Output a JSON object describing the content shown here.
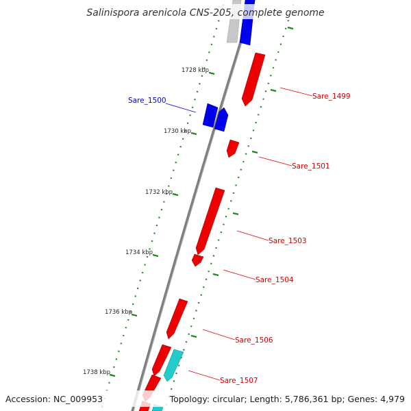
{
  "map": {
    "title": "Salinispora arenicola CNS-205, complete genome",
    "accession_text": "Accession: NC_009953",
    "topology_text": "Topology: circular; Length: 5,786,361 bp; Genes: 4,979"
  },
  "colors": {
    "backbone": "#7f7f7f",
    "tick": "#1e8a1e",
    "forward_gene": "#0000ee",
    "reverse_gene": "#ee0000",
    "other_gene": "#22cccc",
    "faded_gene": "#c8c8c8",
    "forward_label": "#0000cc",
    "reverse_label": "#cc0000"
  },
  "ticks": [
    {
      "label": "1728 kbp"
    },
    {
      "label": "1730 kbp"
    },
    {
      "label": "1732 kbp"
    },
    {
      "label": "1734 kbp"
    },
    {
      "label": "1736 kbp"
    },
    {
      "label": "1738 kbp"
    }
  ],
  "gene_labels": [
    {
      "name": "Sare_1500",
      "strand": "forward"
    },
    {
      "name": "Sare_1499",
      "strand": "reverse"
    },
    {
      "name": "Sare_1501",
      "strand": "reverse"
    },
    {
      "name": "Sare_1503",
      "strand": "reverse"
    },
    {
      "name": "Sare_1504",
      "strand": "reverse"
    },
    {
      "name": "Sare_1506",
      "strand": "reverse"
    },
    {
      "name": "Sare_1507",
      "strand": "reverse"
    }
  ]
}
